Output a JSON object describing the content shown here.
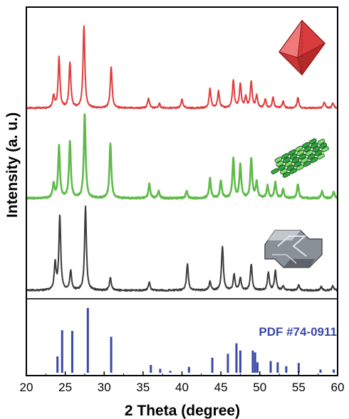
{
  "chart_data": {
    "type": "line",
    "xlabel": "2 Theta (degree)",
    "ylabel": "Intensity (a. u.)",
    "xlim": [
      20,
      60
    ],
    "x_ticks": [
      "20",
      "25",
      "30",
      "35",
      "40",
      "45",
      "50",
      "55",
      "60"
    ],
    "y_ticks": "none",
    "grid": false,
    "legend": "none",
    "series": [
      {
        "color": "#e03c3c",
        "icon": "octahedron-icon",
        "baseline": 0.04,
        "peaks": [
          [
            23.5,
            0.14
          ],
          [
            24.2,
            0.58
          ],
          [
            25.6,
            0.52
          ],
          [
            27.4,
            0.95
          ],
          [
            30.9,
            0.48
          ],
          [
            35.7,
            0.12
          ],
          [
            37.1,
            0.05
          ],
          [
            40.0,
            0.1
          ],
          [
            43.6,
            0.22
          ],
          [
            44.7,
            0.2
          ],
          [
            46.6,
            0.32
          ],
          [
            47.5,
            0.28
          ],
          [
            48.2,
            0.12
          ],
          [
            48.9,
            0.3
          ],
          [
            49.6,
            0.14
          ],
          [
            50.7,
            0.1
          ],
          [
            51.7,
            0.12
          ],
          [
            53.0,
            0.08
          ],
          [
            54.9,
            0.12
          ],
          [
            58.3,
            0.07
          ],
          [
            59.4,
            0.06
          ]
        ]
      },
      {
        "color": "#5fba4a",
        "icon": "nanorod-bundle-icon",
        "baseline": 0.05,
        "peaks": [
          [
            23.5,
            0.16
          ],
          [
            24.2,
            0.58
          ],
          [
            25.6,
            0.64
          ],
          [
            27.5,
            0.95
          ],
          [
            30.8,
            0.62
          ],
          [
            35.8,
            0.16
          ],
          [
            37.0,
            0.08
          ],
          [
            40.6,
            0.08
          ],
          [
            43.6,
            0.22
          ],
          [
            45.0,
            0.2
          ],
          [
            46.6,
            0.45
          ],
          [
            47.5,
            0.38
          ],
          [
            48.9,
            0.44
          ],
          [
            49.6,
            0.18
          ],
          [
            51.0,
            0.14
          ],
          [
            52.0,
            0.18
          ],
          [
            53.0,
            0.1
          ],
          [
            54.9,
            0.16
          ],
          [
            58.0,
            0.08
          ],
          [
            59.5,
            0.07
          ]
        ]
      },
      {
        "color": "#3b3b3b",
        "icon": "platelet-icon",
        "baseline": 0.03,
        "peaks": [
          [
            23.7,
            0.3
          ],
          [
            24.3,
            0.85
          ],
          [
            25.7,
            0.22
          ],
          [
            27.6,
            0.95
          ],
          [
            30.8,
            0.14
          ],
          [
            35.8,
            0.09
          ],
          [
            40.7,
            0.3
          ],
          [
            43.6,
            0.1
          ],
          [
            45.2,
            0.5
          ],
          [
            46.7,
            0.18
          ],
          [
            47.5,
            0.14
          ],
          [
            48.9,
            0.3
          ],
          [
            51.1,
            0.2
          ],
          [
            52.0,
            0.22
          ],
          [
            53.0,
            0.05
          ],
          [
            55.0,
            0.06
          ],
          [
            57.9,
            0.04
          ],
          [
            59.4,
            0.05
          ]
        ]
      }
    ],
    "reference": {
      "label": "PDF #74-0911",
      "color": "#3a49a6",
      "x": [
        24.0,
        24.6,
        25.9,
        27.9,
        30.9,
        36.0,
        37.2,
        38.5,
        40.9,
        43.9,
        45.9,
        47.0,
        47.5,
        49.1,
        49.4,
        49.7,
        51.4,
        52.3,
        53.4,
        55.0,
        57.8,
        59.5
      ],
      "y": [
        0.25,
        0.65,
        0.64,
        0.99,
        0.55,
        0.12,
        0.06,
        0.03,
        0.09,
        0.23,
        0.29,
        0.45,
        0.34,
        0.34,
        0.31,
        0.16,
        0.18,
        0.16,
        0.1,
        0.15,
        0.05,
        0.05
      ]
    }
  }
}
